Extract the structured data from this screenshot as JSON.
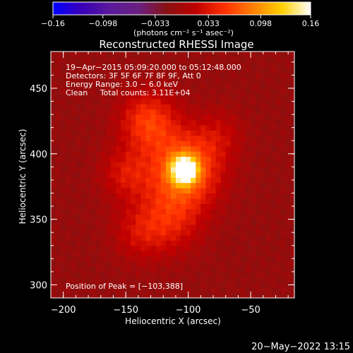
{
  "chart_data": {
    "type": "heatmap",
    "title": "Reconstructed RHESSI Image",
    "xlabel": "Heliocentric X (arcsec)",
    "ylabel": "Heliocentric Y (arcsec)",
    "xlim": [
      -210,
      -15
    ],
    "ylim": [
      290,
      478
    ],
    "x_ticks": [
      {
        "value": -200,
        "label": "−200"
      },
      {
        "value": -150,
        "label": "−150"
      },
      {
        "value": -100,
        "label": "−100"
      },
      {
        "value": -50,
        "label": "−50"
      }
    ],
    "y_ticks": [
      {
        "value": 300,
        "label": "300"
      },
      {
        "value": 350,
        "label": "350"
      },
      {
        "value": 400,
        "label": "400"
      },
      {
        "value": 450,
        "label": "450"
      }
    ],
    "colorbar": {
      "min": -0.16,
      "max": 0.16,
      "tick_labels": [
        "−0.16",
        "−0.098",
        "−0.033",
        "0.033",
        "0.098",
        "0.16"
      ],
      "tick_values": [
        -0.16,
        -0.098,
        -0.033,
        0.033,
        0.098,
        0.16
      ],
      "unit_label": "(photons cm⁻² s⁻¹ asec⁻²)",
      "colormap": [
        "#0000ff",
        "#3a00b8",
        "#5a1a9a",
        "#6a2080",
        "#8a1010",
        "#c00000",
        "#ff3000",
        "#ff8000",
        "#ffd000",
        "#ffffff"
      ]
    },
    "annotations": [
      "19−Apr−2015 05:09:20.000 to 05:12:48.000",
      "Detectors: 3F 5F 6F 7F 8F 9F, Att 0",
      "Energy Range: 3.0 − 6.0 keV",
      "Clean     Total counts: 3.11E+04"
    ],
    "peak_label": "Position of Peak = [−103,388]",
    "peak": {
      "x": -103,
      "y": 388,
      "value": 0.16
    },
    "sources": [
      {
        "x": -103,
        "y": 388,
        "amplitude": 0.16,
        "sigma": 7
      },
      {
        "x": -103,
        "y": 388,
        "amplitude": 0.09,
        "sigma": 20
      },
      {
        "x": -132,
        "y": 425,
        "amplitude": 0.065,
        "sigma": 16
      },
      {
        "x": -150,
        "y": 385,
        "amplitude": 0.04,
        "sigma": 14
      },
      {
        "x": -115,
        "y": 350,
        "amplitude": 0.045,
        "sigma": 18
      },
      {
        "x": -140,
        "y": 340,
        "amplitude": 0.03,
        "sigma": 15
      },
      {
        "x": -75,
        "y": 415,
        "amplitude": 0.025,
        "sigma": 14
      }
    ],
    "background_level": -0.01
  },
  "footer": {
    "timestamp": "20−May−2022 13:15"
  }
}
